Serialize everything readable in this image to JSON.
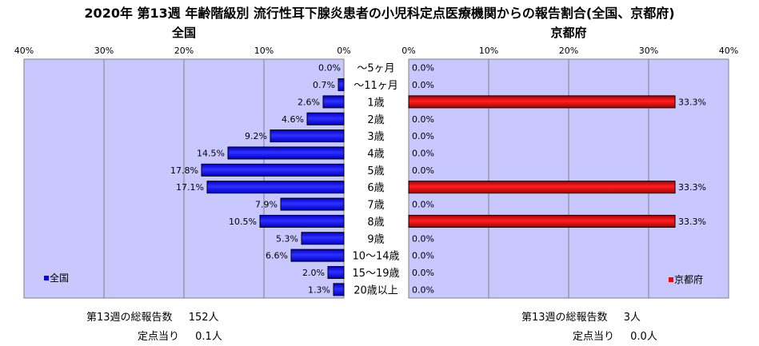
{
  "title": "2020年 第13週 年齢階級別 流行性耳下腺炎患者の小児科定点医療機関からの報告割合(全国、京都府)",
  "chart_data": {
    "type": "bar",
    "orientation": "horizontal",
    "categories": [
      "～5ヶ月",
      "～11ヶ月",
      "1歳",
      "2歳",
      "3歳",
      "4歳",
      "5歳",
      "6歳",
      "7歳",
      "8歳",
      "9歳",
      "10～14歳",
      "15～19歳",
      "20歳以上"
    ],
    "panels": [
      {
        "title": "全国",
        "legend": "全国",
        "legend_position": "bottom-left",
        "direction": "right-to-left",
        "color": "#0000ff",
        "xlim": [
          0,
          40
        ],
        "ticks": [
          "40%",
          "30%",
          "20%",
          "10%",
          "0%"
        ],
        "values": [
          0.0,
          0.7,
          2.6,
          4.6,
          9.2,
          14.5,
          17.8,
          17.1,
          7.9,
          10.5,
          5.3,
          6.6,
          2.0,
          1.3
        ],
        "labels": [
          "0.0%",
          "0.7%",
          "2.6%",
          "4.6%",
          "9.2%",
          "14.5%",
          "17.8%",
          "17.1%",
          "7.9%",
          "10.5%",
          "5.3%",
          "6.6%",
          "2.0%",
          "1.3%"
        ]
      },
      {
        "title": "京都府",
        "legend": "京都府",
        "legend_position": "bottom-right",
        "direction": "left-to-right",
        "color": "#ff0000",
        "xlim": [
          0,
          40
        ],
        "ticks": [
          "0%",
          "10%",
          "20%",
          "30%",
          "40%"
        ],
        "values": [
          0.0,
          0.0,
          33.3,
          0.0,
          0.0,
          0.0,
          0.0,
          33.3,
          0.0,
          33.3,
          0.0,
          0.0,
          0.0,
          0.0
        ],
        "labels": [
          "0.0%",
          "0.0%",
          "33.3%",
          "0.0%",
          "0.0%",
          "0.0%",
          "0.0%",
          "33.3%",
          "0.0%",
          "33.3%",
          "0.0%",
          "0.0%",
          "0.0%",
          "0.0%"
        ]
      }
    ],
    "grid": true
  },
  "footer": {
    "left": {
      "total_label": "第13週の総報告数",
      "total_value": "152人",
      "per_label": "定点当り",
      "per_value": "0.1人"
    },
    "right": {
      "total_label": "第13週の総報告数",
      "total_value": "3人",
      "per_label": "定点当り",
      "per_value": "0.0人"
    }
  }
}
